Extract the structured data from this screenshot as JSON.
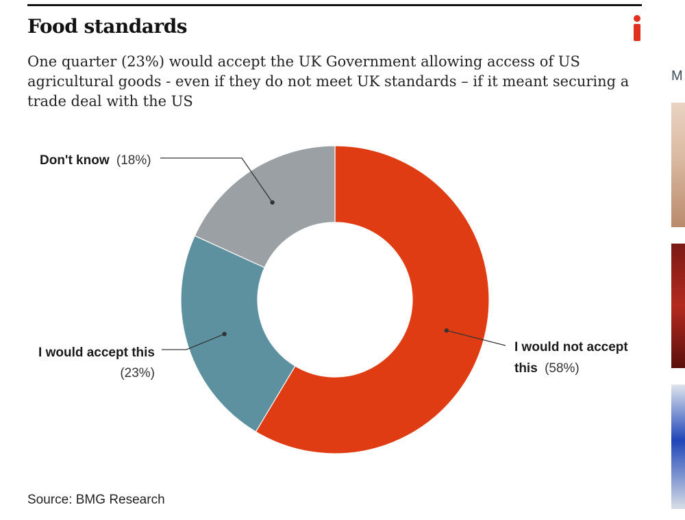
{
  "page": {
    "title": "Food standards",
    "subtitle": "One quarter (23%) would accept the UK Government allowing access of US agricultural goods - even if they do not meet UK standards – if it meant securing a trade deal with the US",
    "source": "Source: BMG Research",
    "sidebar_letter": "M",
    "logo_icon": "i-logo-icon"
  },
  "chart_data": {
    "type": "pie",
    "style": "donut",
    "title": "Food standards",
    "slices": [
      {
        "name": "I would not accept this",
        "value": 58,
        "color": "#e03c13",
        "label_bold_line1": "I would not accept",
        "label_bold_line2": "this",
        "label_pct": "(58%)"
      },
      {
        "name": "I would accept this",
        "value": 23,
        "color": "#5e919f",
        "label_bold_line1": "I would accept this",
        "label_pct": "(23%)"
      },
      {
        "name": "Don't know",
        "value": 18,
        "color": "#9ba0a5",
        "label_bold_line1": "Don't know",
        "label_pct": "(18%)"
      }
    ],
    "legend": "none",
    "labels": "callouts"
  },
  "colors": {
    "accent": "#e03c13",
    "logo": "#e0301e"
  }
}
